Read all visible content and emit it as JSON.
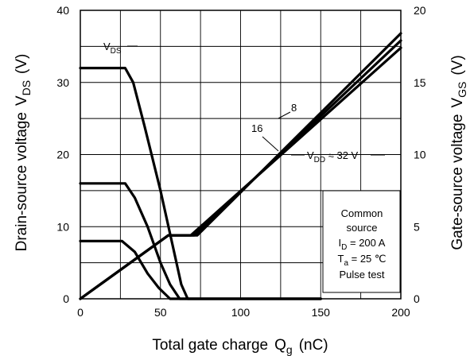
{
  "chart_data": {
    "type": "line",
    "xlabel": {
      "main": "Total gate charge",
      "symbol": "Q",
      "sub": "g",
      "unit": "(nC)"
    },
    "ylabel_left": {
      "main": "Drain-source voltage",
      "symbol": "V",
      "sub": "DS",
      "unit": "(V)"
    },
    "ylabel_right": {
      "main": "Gate-source voltage",
      "symbol": "V",
      "sub": "GS",
      "unit": "(V)"
    },
    "xlim": [
      0,
      200
    ],
    "ylim_left": [
      0,
      40
    ],
    "ylim_right": [
      0,
      20
    ],
    "x_ticks": [
      "0",
      "50",
      "100",
      "150",
      "200"
    ],
    "y_left_ticks": [
      "0",
      "10",
      "20",
      "30",
      "40"
    ],
    "y_right_ticks": [
      "0",
      "5",
      "10",
      "15",
      "20"
    ],
    "grid": true,
    "series": [
      {
        "axis": "left",
        "points": [
          [
            0,
            32
          ],
          [
            28,
            32
          ],
          [
            33,
            30
          ],
          [
            40,
            24
          ],
          [
            50,
            15
          ],
          [
            58,
            7
          ],
          [
            63,
            2
          ],
          [
            67,
            0
          ],
          [
            150,
            0
          ]
        ]
      },
      {
        "axis": "left",
        "points": [
          [
            0,
            16
          ],
          [
            28,
            16
          ],
          [
            34,
            14
          ],
          [
            42,
            10
          ],
          [
            50,
            5
          ],
          [
            56,
            2
          ],
          [
            62,
            0
          ],
          [
            150,
            0
          ]
        ]
      },
      {
        "axis": "left",
        "points": [
          [
            0,
            8
          ],
          [
            26,
            8
          ],
          [
            34,
            6.5
          ],
          [
            42,
            3.5
          ],
          [
            49,
            1.5
          ],
          [
            56,
            0
          ],
          [
            150,
            0
          ]
        ]
      },
      {
        "axis": "right",
        "points": [
          [
            0,
            0
          ],
          [
            55,
            4.4
          ],
          [
            69,
            4.4
          ],
          [
            200,
            17.4
          ]
        ]
      },
      {
        "axis": "right",
        "points": [
          [
            0,
            0
          ],
          [
            55,
            4.4
          ],
          [
            71,
            4.4
          ],
          [
            200,
            17.9
          ]
        ]
      },
      {
        "axis": "right",
        "points": [
          [
            0,
            0
          ],
          [
            55,
            4.4
          ],
          [
            73,
            4.4
          ],
          [
            200,
            18.4
          ]
        ]
      }
    ],
    "annotations": {
      "vds": {
        "main": "V",
        "sub": "DS"
      },
      "label_8": "8",
      "label_16": "16",
      "vdd": {
        "main": "V",
        "sub": "DD",
        "rest": " ≈ 32 V"
      }
    },
    "legend_box": [
      "Common",
      "source"
    ],
    "conditions": {
      "id": {
        "main": "I",
        "sub": "D",
        "rest": " = 200 A"
      },
      "ta": {
        "main": "T",
        "sub": "a",
        "rest": " = 25 ℃"
      },
      "pulse": "Pulse test"
    }
  }
}
